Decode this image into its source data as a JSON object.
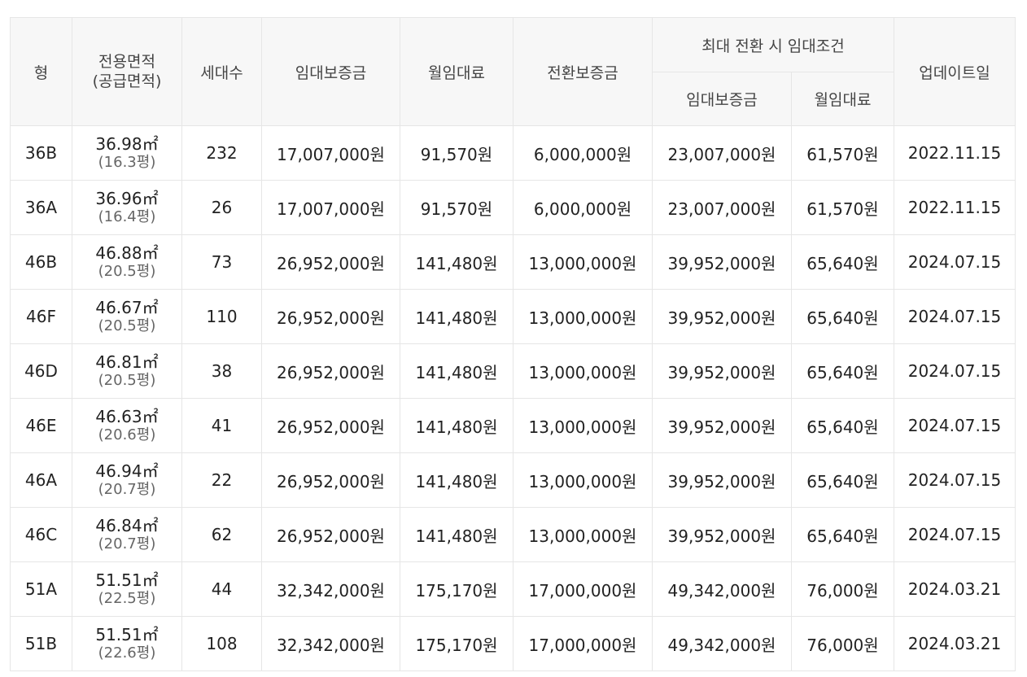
{
  "header": {
    "type": "형",
    "area_line1": "전용면적",
    "area_line2": "(공급면적)",
    "households": "세대수",
    "deposit": "임대보증금",
    "monthly_rent": "월임대료",
    "conversion_deposit": "전환보증금",
    "max_conversion_group": "최대 전환 시 임대조건",
    "max_deposit": "임대보증금",
    "max_monthly_rent": "월임대료",
    "updated": "업데이트일"
  },
  "rows": [
    {
      "type": "36B",
      "area": "36.98㎡",
      "pyeong": "(16.3평)",
      "households": "232",
      "deposit": "17,007,000원",
      "rent": "91,570원",
      "conversion": "6,000,000원",
      "max_deposit": "23,007,000원",
      "max_rent": "61,570원",
      "updated": "2022.11.15"
    },
    {
      "type": "36A",
      "area": "36.96㎡",
      "pyeong": "(16.4평)",
      "households": "26",
      "deposit": "17,007,000원",
      "rent": "91,570원",
      "conversion": "6,000,000원",
      "max_deposit": "23,007,000원",
      "max_rent": "61,570원",
      "updated": "2022.11.15"
    },
    {
      "type": "46B",
      "area": "46.88㎡",
      "pyeong": "(20.5평)",
      "households": "73",
      "deposit": "26,952,000원",
      "rent": "141,480원",
      "conversion": "13,000,000원",
      "max_deposit": "39,952,000원",
      "max_rent": "65,640원",
      "updated": "2024.07.15"
    },
    {
      "type": "46F",
      "area": "46.67㎡",
      "pyeong": "(20.5평)",
      "households": "110",
      "deposit": "26,952,000원",
      "rent": "141,480원",
      "conversion": "13,000,000원",
      "max_deposit": "39,952,000원",
      "max_rent": "65,640원",
      "updated": "2024.07.15"
    },
    {
      "type": "46D",
      "area": "46.81㎡",
      "pyeong": "(20.5평)",
      "households": "38",
      "deposit": "26,952,000원",
      "rent": "141,480원",
      "conversion": "13,000,000원",
      "max_deposit": "39,952,000원",
      "max_rent": "65,640원",
      "updated": "2024.07.15"
    },
    {
      "type": "46E",
      "area": "46.63㎡",
      "pyeong": "(20.6평)",
      "households": "41",
      "deposit": "26,952,000원",
      "rent": "141,480원",
      "conversion": "13,000,000원",
      "max_deposit": "39,952,000원",
      "max_rent": "65,640원",
      "updated": "2024.07.15"
    },
    {
      "type": "46A",
      "area": "46.94㎡",
      "pyeong": "(20.7평)",
      "households": "22",
      "deposit": "26,952,000원",
      "rent": "141,480원",
      "conversion": "13,000,000원",
      "max_deposit": "39,952,000원",
      "max_rent": "65,640원",
      "updated": "2024.07.15"
    },
    {
      "type": "46C",
      "area": "46.84㎡",
      "pyeong": "(20.7평)",
      "households": "62",
      "deposit": "26,952,000원",
      "rent": "141,480원",
      "conversion": "13,000,000원",
      "max_deposit": "39,952,000원",
      "max_rent": "65,640원",
      "updated": "2024.07.15"
    },
    {
      "type": "51A",
      "area": "51.51㎡",
      "pyeong": "(22.5평)",
      "households": "44",
      "deposit": "32,342,000원",
      "rent": "175,170원",
      "conversion": "17,000,000원",
      "max_deposit": "49,342,000원",
      "max_rent": "76,000원",
      "updated": "2024.03.21"
    },
    {
      "type": "51B",
      "area": "51.51㎡",
      "pyeong": "(22.6평)",
      "households": "108",
      "deposit": "32,342,000원",
      "rent": "175,170원",
      "conversion": "17,000,000원",
      "max_deposit": "49,342,000원",
      "max_rent": "76,000원",
      "updated": "2024.03.21"
    }
  ]
}
